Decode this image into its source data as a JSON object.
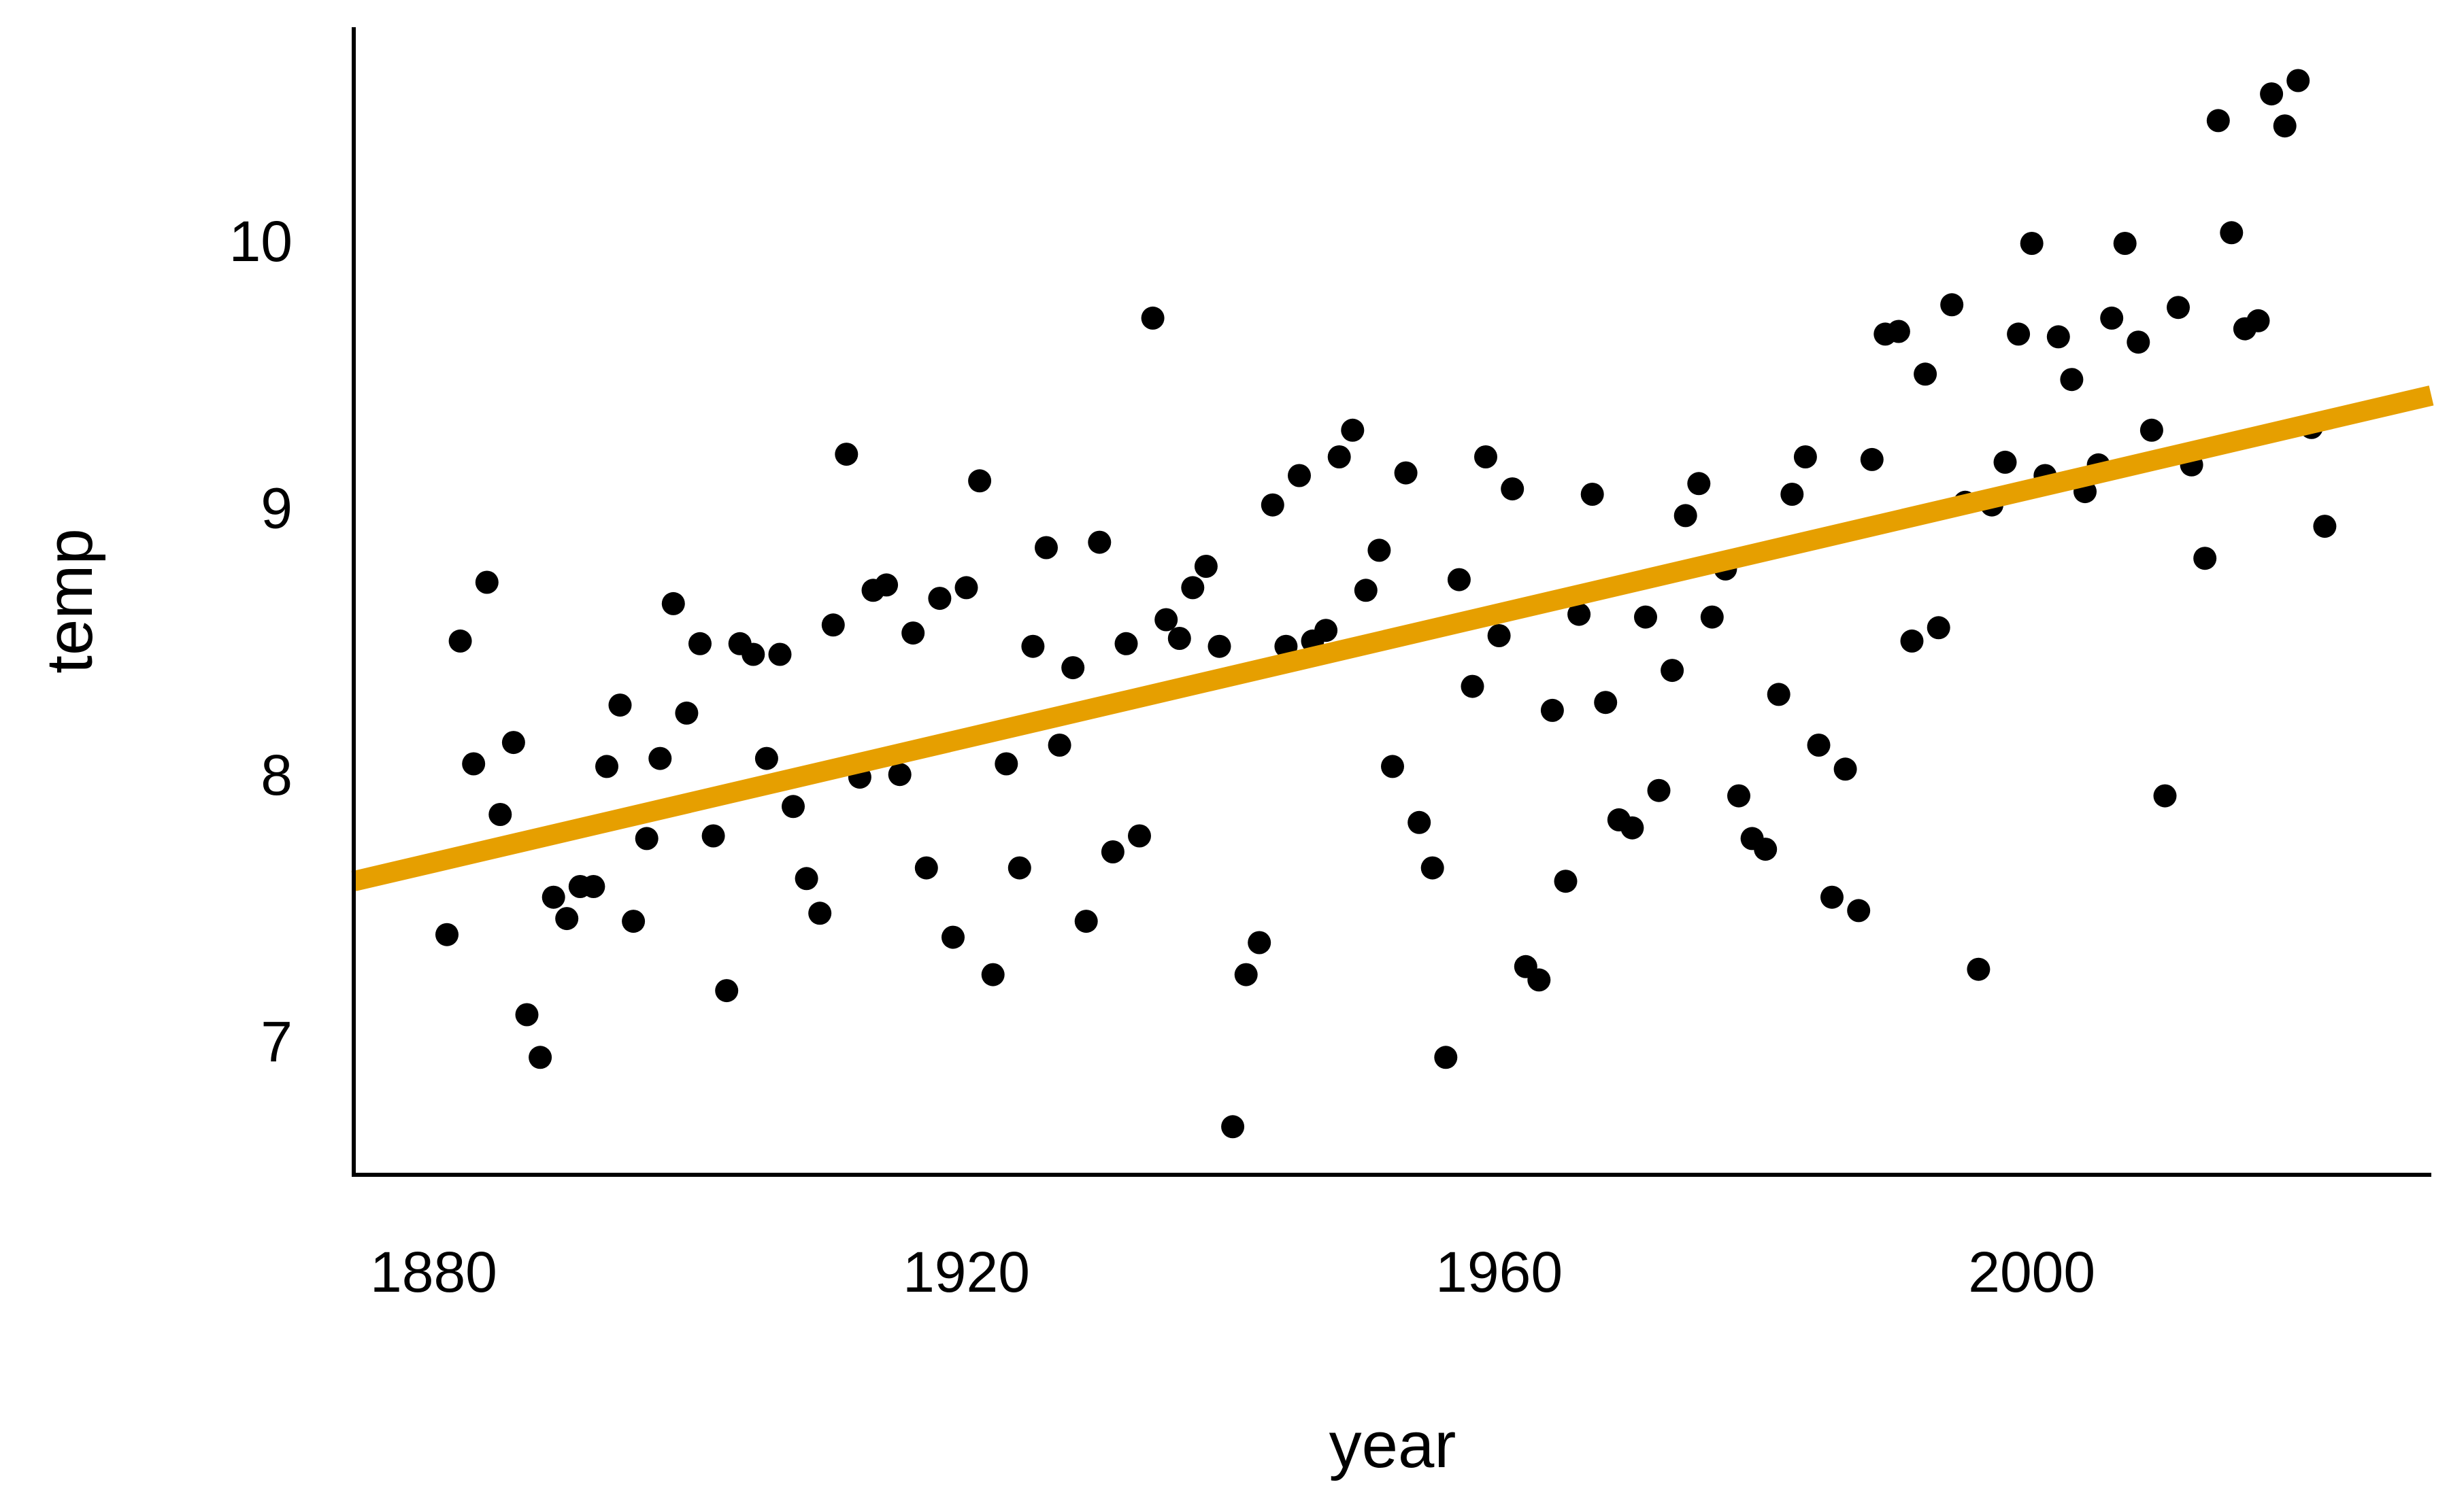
{
  "chart_data": {
    "type": "scatter",
    "title": "",
    "xlabel": "year",
    "ylabel": "temp",
    "xlim": [
      1874,
      2030
    ],
    "ylim": [
      6.5,
      10.8
    ],
    "x_ticks": [
      1880,
      1920,
      1960,
      2000
    ],
    "x_tick_labels": [
      "1880",
      "1920",
      "1960",
      "2000"
    ],
    "y_ticks": [
      7,
      8,
      9,
      10
    ],
    "y_tick_labels": [
      "7",
      "8",
      "9",
      "10"
    ],
    "grid": false,
    "legend": "none",
    "point_color": "#000000",
    "trend_line": {
      "color": "#E69F00",
      "x": [
        1874,
        2030
      ],
      "y": [
        7.6,
        9.42
      ]
    },
    "points": [
      [
        1881,
        7.4
      ],
      [
        1882,
        8.5
      ],
      [
        1883,
        8.04
      ],
      [
        1884,
        8.72
      ],
      [
        1885,
        7.85
      ],
      [
        1886,
        8.12
      ],
      [
        1887,
        7.1
      ],
      [
        1888,
        6.94
      ],
      [
        1889,
        7.54
      ],
      [
        1890,
        7.46
      ],
      [
        1891,
        7.58
      ],
      [
        1892,
        7.58
      ],
      [
        1893,
        8.03
      ],
      [
        1894,
        8.26
      ],
      [
        1895,
        7.45
      ],
      [
        1896,
        7.76
      ],
      [
        1897,
        8.06
      ],
      [
        1898,
        8.64
      ],
      [
        1899,
        8.23
      ],
      [
        1900,
        8.49
      ],
      [
        1901,
        7.77
      ],
      [
        1902,
        7.19
      ],
      [
        1903,
        8.49
      ],
      [
        1904,
        8.45
      ],
      [
        1905,
        8.06
      ],
      [
        1906,
        8.45
      ],
      [
        1907,
        7.88
      ],
      [
        1908,
        7.61
      ],
      [
        1909,
        7.48
      ],
      [
        1910,
        8.56
      ],
      [
        1911,
        9.2
      ],
      [
        1912,
        7.99
      ],
      [
        1913,
        8.69
      ],
      [
        1914,
        8.71
      ],
      [
        1915,
        8.0
      ],
      [
        1916,
        8.53
      ],
      [
        1917,
        7.65
      ],
      [
        1918,
        8.66
      ],
      [
        1919,
        7.39
      ],
      [
        1920,
        8.7
      ],
      [
        1921,
        9.1
      ],
      [
        1922,
        7.25
      ],
      [
        1923,
        8.04
      ],
      [
        1924,
        7.65
      ],
      [
        1925,
        8.48
      ],
      [
        1926,
        8.85
      ],
      [
        1927,
        8.11
      ],
      [
        1928,
        8.4
      ],
      [
        1929,
        7.45
      ],
      [
        1930,
        8.87
      ],
      [
        1931,
        7.71
      ],
      [
        1932,
        8.49
      ],
      [
        1933,
        7.77
      ],
      [
        1934,
        9.71
      ],
      [
        1935,
        8.58
      ],
      [
        1936,
        8.51
      ],
      [
        1937,
        8.7
      ],
      [
        1938,
        8.78
      ],
      [
        1939,
        8.48
      ],
      [
        1940,
        6.68
      ],
      [
        1941,
        7.25
      ],
      [
        1942,
        7.37
      ],
      [
        1943,
        9.01
      ],
      [
        1944,
        8.48
      ],
      [
        1945,
        9.12
      ],
      [
        1946,
        8.5
      ],
      [
        1947,
        8.54
      ],
      [
        1948,
        9.19
      ],
      [
        1949,
        9.29
      ],
      [
        1950,
        8.69
      ],
      [
        1951,
        8.84
      ],
      [
        1952,
        8.03
      ],
      [
        1953,
        9.13
      ],
      [
        1954,
        7.82
      ],
      [
        1955,
        7.65
      ],
      [
        1956,
        6.94
      ],
      [
        1957,
        8.73
      ],
      [
        1958,
        8.33
      ],
      [
        1959,
        9.19
      ],
      [
        1960,
        8.52
      ],
      [
        1961,
        9.07
      ],
      [
        1962,
        7.28
      ],
      [
        1963,
        7.23
      ],
      [
        1964,
        8.24
      ],
      [
        1965,
        7.6
      ],
      [
        1966,
        8.6
      ],
      [
        1967,
        9.05
      ],
      [
        1968,
        8.27
      ],
      [
        1969,
        7.83
      ],
      [
        1970,
        7.8
      ],
      [
        1971,
        8.59
      ],
      [
        1972,
        7.94
      ],
      [
        1973,
        8.39
      ],
      [
        1974,
        8.97
      ],
      [
        1975,
        9.09
      ],
      [
        1976,
        8.59
      ],
      [
        1977,
        8.77
      ],
      [
        1978,
        7.92
      ],
      [
        1979,
        7.76
      ],
      [
        1980,
        7.72
      ],
      [
        1981,
        8.3
      ],
      [
        1982,
        9.05
      ],
      [
        1983,
        9.19
      ],
      [
        1984,
        8.11
      ],
      [
        1985,
        7.54
      ],
      [
        1986,
        8.02
      ],
      [
        1987,
        7.49
      ],
      [
        1988,
        9.18
      ],
      [
        1989,
        9.65
      ],
      [
        1990,
        9.66
      ],
      [
        1991,
        8.5
      ],
      [
        1992,
        9.5
      ],
      [
        1993,
        8.55
      ],
      [
        1994,
        9.76
      ],
      [
        1995,
        9.02
      ],
      [
        1996,
        7.27
      ],
      [
        1997,
        9.01
      ],
      [
        1998,
        9.17
      ],
      [
        1999,
        9.65
      ],
      [
        2000,
        9.99
      ],
      [
        2001,
        9.12
      ],
      [
        2002,
        9.64
      ],
      [
        2003,
        9.48
      ],
      [
        2004,
        9.06
      ],
      [
        2005,
        9.16
      ],
      [
        2006,
        9.71
      ],
      [
        2007,
        9.99
      ],
      [
        2008,
        9.62
      ],
      [
        2009,
        9.29
      ],
      [
        2010,
        7.92
      ],
      [
        2011,
        9.75
      ],
      [
        2012,
        9.16
      ],
      [
        2013,
        8.81
      ],
      [
        2014,
        10.45
      ],
      [
        2015,
        10.03
      ],
      [
        2016,
        9.67
      ],
      [
        2017,
        9.7
      ],
      [
        2018,
        10.55
      ],
      [
        2019,
        10.43
      ],
      [
        2020,
        10.6
      ],
      [
        2021,
        9.3
      ],
      [
        2022,
        8.93
      ]
    ]
  }
}
